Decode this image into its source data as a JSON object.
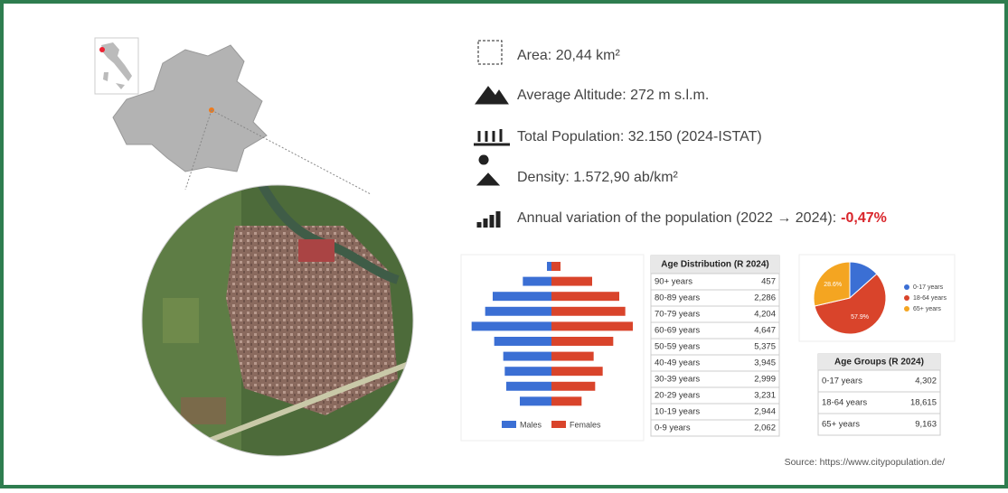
{
  "stats": {
    "area": "Area: 20,44 km²",
    "altitude": "Average Altitude: 272 m s.l.m.",
    "population": "Total Population: 32.150 (2024-ISTAT)",
    "density": "Density: 1.572,90 ab/km²",
    "variation_label": "Annual variation of the population (2022 → 2024):",
    "variation_value": "-0,47%"
  },
  "pyramid": {
    "type": "bar",
    "orientation": "population-pyramid",
    "categories": [
      null,
      null,
      null,
      null,
      null,
      null,
      null,
      null,
      null,
      null
    ],
    "xlim": [
      0,
      3000
    ],
    "series": [
      {
        "name": "Males",
        "color": "#3b6fd4",
        "values": [
          150,
          950,
          1950,
          2200,
          2650,
          1900,
          1600,
          1550,
          1500,
          1050
        ]
      },
      {
        "name": "Females",
        "color": "#d9442b",
        "values": [
          300,
          1350,
          2250,
          2450,
          2700,
          2050,
          1400,
          1700,
          1450,
          1000
        ]
      }
    ]
  },
  "age_table": {
    "title": "Age Distribution (R 2024)",
    "rows": [
      [
        "90+ years",
        "457"
      ],
      [
        "80-89 years",
        "2,286"
      ],
      [
        "70-79 years",
        "4,204"
      ],
      [
        "60-69 years",
        "4,647"
      ],
      [
        "50-59 years",
        "5,375"
      ],
      [
        "40-49 years",
        "3,945"
      ],
      [
        "30-39 years",
        "2,999"
      ],
      [
        "20-29 years",
        "3,231"
      ],
      [
        "10-19 years",
        "2,944"
      ],
      [
        "0-9 years",
        "2,062"
      ]
    ]
  },
  "pie": {
    "type": "pie",
    "categories": [
      "0-17 years",
      "18-64 years",
      "65+ years"
    ],
    "values": [
      13.4,
      57.9,
      28.6
    ],
    "value_labels": [
      null,
      "57.9%",
      "28.6%"
    ],
    "colors": [
      "#3b6fd4",
      "#d9442b",
      "#f4a521"
    ]
  },
  "groups_table": {
    "title": "Age Groups (R 2024)",
    "rows": [
      [
        "0-17 years",
        "4,302"
      ],
      [
        "18-64 years",
        "18,615"
      ],
      [
        "65+ years",
        "9,163"
      ]
    ]
  },
  "source": "Source: https://www.citypopulation.de/"
}
